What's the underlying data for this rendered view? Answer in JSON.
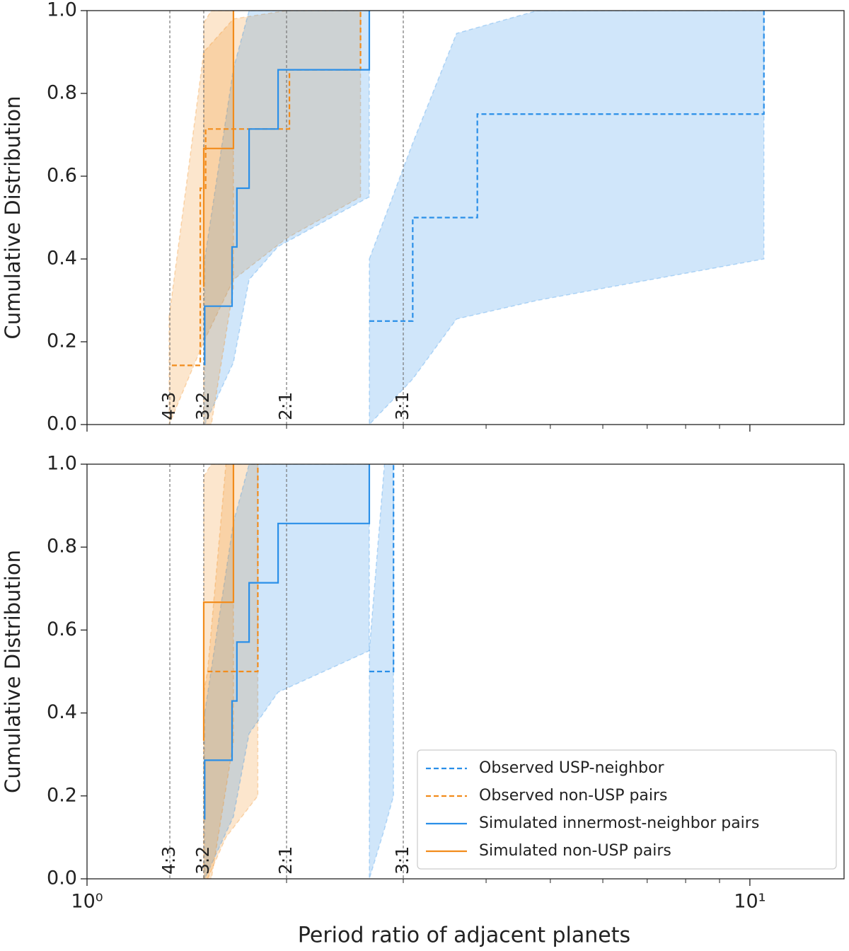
{
  "chart_data": [
    {
      "type": "step",
      "y_label": "Cumulative Distribution",
      "xscale": "log",
      "xlim": [
        1,
        13.87
      ],
      "xticks": [
        1,
        10
      ],
      "xminorticks": [
        2,
        3,
        4,
        5,
        6,
        7,
        8,
        9
      ],
      "xtick_labels": false,
      "ylim": [
        0,
        1
      ],
      "yticks": [
        {
          "value": 0,
          "label": "0.0"
        },
        0.2,
        0.4,
        0.6,
        0.8,
        {
          "value": 1,
          "label": "1.0"
        }
      ],
      "reference_lines": [
        {
          "x": 1.3333,
          "label": "4:3"
        },
        {
          "x": 1.5,
          "label": "3:2"
        },
        {
          "x": 2,
          "label": "2:1"
        },
        {
          "x": 3,
          "label": "3:1"
        }
      ],
      "series": [
        {
          "color": "#2a8fe8",
          "linestyle": "dashed",
          "x": [
            2.666,
            3.1,
            3.88,
            10.5
          ],
          "values": [
            0.25,
            0.5,
            0.75,
            1.0
          ],
          "band": {
            "x": [
              2.666,
              3.1,
              3.61,
              4.78,
              10.5
            ],
            "lower": [
              0.0,
              0.11,
              0.255,
              0.3,
              0.4
            ],
            "upper": [
              0.4,
              0.68,
              0.945,
              1.0,
              1.0
            ]
          }
        },
        {
          "color": "#f28c1c",
          "linestyle": "dashed",
          "x": [
            1.343,
            1.482,
            1.482,
            1.482,
            1.51,
            2.02,
            2.586
          ],
          "values": [
            0.143,
            0.286,
            0.429,
            0.571,
            0.714,
            0.857,
            1.0
          ],
          "band": {
            "x": [
              1.33,
              1.5,
              1.663,
              2.0,
              2.586
            ],
            "lower": [
              0.0,
              0.2,
              0.35,
              0.45,
              0.55
            ],
            "upper": [
              0.26,
              0.9,
              0.98,
              1.0,
              1.0
            ]
          }
        },
        {
          "color": "#2a8fe8",
          "linestyle": "solid",
          "x": [
            1.505,
            1.505,
            1.655,
            1.683,
            1.756,
            1.942,
            2.666
          ],
          "values": [
            0.143,
            0.286,
            0.429,
            0.571,
            0.714,
            0.857,
            1.0
          ],
          "band": {
            "x": [
              1.505,
              1.663,
              1.756,
              1.942,
              2.666
            ],
            "lower": [
              0.0,
              0.15,
              0.35,
              0.43,
              0.55
            ],
            "upper": [
              0.4,
              0.86,
              1.0,
              1.0,
              1.0
            ]
          }
        },
        {
          "color": "#f28c1c",
          "linestyle": "solid",
          "x": [
            1.5,
            1.5,
            1.663
          ],
          "values": [
            0.333,
            0.667,
            1.0
          ],
          "band": {
            "x": [
              1.5,
              1.54,
              1.663
            ],
            "lower": [
              0.0,
              0.0,
              0.33
            ],
            "upper": [
              0.97,
              1.0,
              1.0
            ]
          }
        }
      ]
    },
    {
      "type": "step",
      "y_label": "Cumulative Distribution",
      "x_label": "Period ratio of adjacent planets",
      "xscale": "log",
      "xlim": [
        1,
        13.87
      ],
      "xticks": [
        {
          "value": 1,
          "label": "10⁰"
        },
        {
          "value": 10,
          "label": "10¹"
        }
      ],
      "xminorticks": [
        2,
        3,
        4,
        5,
        6,
        7,
        8,
        9
      ],
      "xtick_labels": true,
      "ylim": [
        0,
        1
      ],
      "yticks": [
        {
          "value": 0,
          "label": "0.0"
        },
        0.2,
        0.4,
        0.6,
        0.8,
        {
          "value": 1,
          "label": "1.0"
        }
      ],
      "reference_lines": [
        {
          "x": 1.3333,
          "label": "4:3"
        },
        {
          "x": 1.5,
          "label": "3:2"
        },
        {
          "x": 2,
          "label": "2:1"
        },
        {
          "x": 3,
          "label": "3:1"
        }
      ],
      "legend": "lower right",
      "series": [
        {
          "name": "Observed USP-neighbor",
          "color": "#2a8fe8",
          "linestyle": "dashed",
          "x": [
            2.666,
            2.9
          ],
          "values": [
            0.5,
            1.0
          ],
          "band": {
            "x": [
              2.666,
              2.81,
              2.9
            ],
            "lower": [
              0.0,
              0.12,
              0.2
            ],
            "upper": [
              0.55,
              1.0,
              1.0
            ]
          }
        },
        {
          "name": "Observed non-USP pairs",
          "color": "#f28c1c",
          "linestyle": "dashed",
          "x": [
            1.52,
            1.81
          ],
          "values": [
            0.5,
            1.0
          ],
          "band": {
            "x": [
              1.5,
              1.52,
              1.62,
              1.81
            ],
            "lower": [
              0.0,
              0.0,
              0.1,
              0.2
            ],
            "upper": [
              0.45,
              0.5,
              1.0,
              1.0
            ]
          }
        },
        {
          "name": "Simulated innermost-neighbor pairs",
          "color": "#2a8fe8",
          "linestyle": "solid",
          "x": [
            1.505,
            1.505,
            1.655,
            1.683,
            1.756,
            1.942,
            2.666
          ],
          "values": [
            0.143,
            0.286,
            0.429,
            0.571,
            0.714,
            0.857,
            1.0
          ],
          "band": {
            "x": [
              1.505,
              1.663,
              1.756,
              1.942,
              2.666
            ],
            "lower": [
              0.0,
              0.15,
              0.35,
              0.45,
              0.55
            ],
            "upper": [
              0.4,
              0.86,
              1.0,
              1.0,
              1.0
            ]
          }
        },
        {
          "name": "Simulated non-USP pairs",
          "color": "#f28c1c",
          "linestyle": "solid",
          "x": [
            1.5,
            1.5,
            1.663
          ],
          "values": [
            0.333,
            0.667,
            1.0
          ],
          "band": {
            "x": [
              1.5,
              1.54,
              1.663
            ],
            "lower": [
              0.0,
              0.0,
              0.33
            ],
            "upper": [
              0.97,
              1.0,
              1.0
            ]
          }
        }
      ]
    }
  ]
}
